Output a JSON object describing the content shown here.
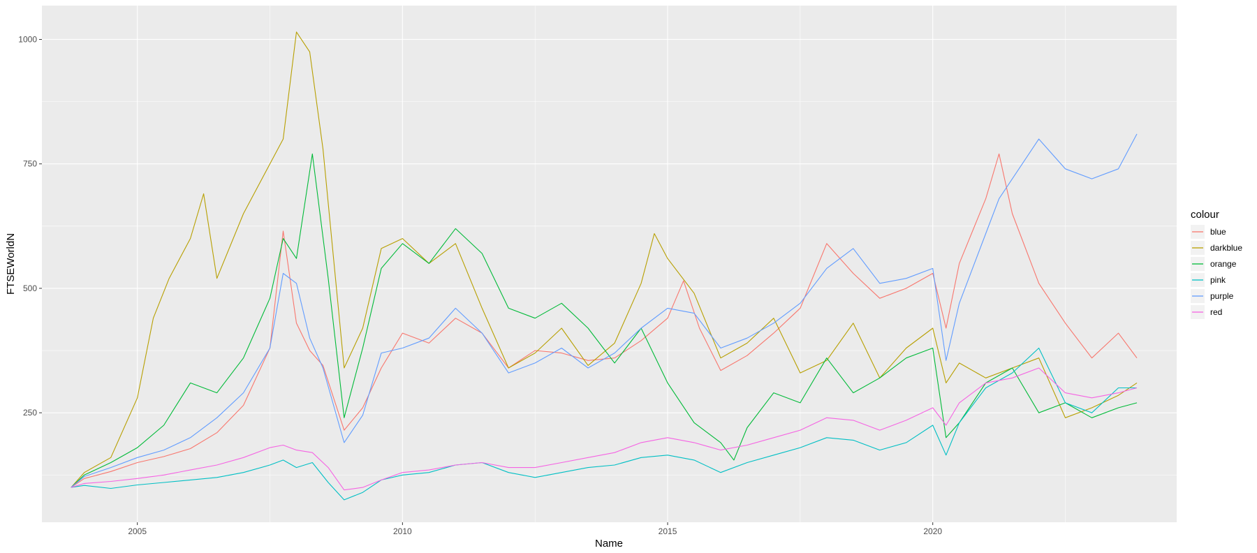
{
  "chart_data": {
    "type": "line",
    "title": "",
    "xlabel": "Name",
    "ylabel": "FTSEWorldN",
    "xlim": [
      2003.2,
      2024.6
    ],
    "ylim": [
      30,
      1068
    ],
    "x_ticks": [
      2005,
      2010,
      2015,
      2020
    ],
    "x_tick_labels": [
      "2005",
      "2010",
      "2015",
      "2020"
    ],
    "y_ticks": [
      250,
      500,
      750,
      1000
    ],
    "y_tick_labels": [
      "250",
      "500",
      "750",
      "1000"
    ],
    "grid": true,
    "background": "#ebebeb",
    "legend": {
      "title": "colour",
      "position": "right"
    },
    "series": [
      {
        "name": "blue",
        "color": "#f8766d",
        "x": [
          2003.75,
          2004.0,
          2004.5,
          2005.0,
          2005.5,
          2006.0,
          2006.5,
          2007.0,
          2007.5,
          2007.75,
          2008.0,
          2008.25,
          2008.5,
          2008.9,
          2009.25,
          2009.6,
          2010.0,
          2010.5,
          2011.0,
          2011.5,
          2012.0,
          2012.5,
          2013.0,
          2013.5,
          2014.0,
          2014.5,
          2015.0,
          2015.3,
          2015.6,
          2016.0,
          2016.5,
          2017.0,
          2017.5,
          2018.0,
          2018.5,
          2019.0,
          2019.5,
          2020.0,
          2020.25,
          2020.5,
          2021.0,
          2021.25,
          2021.5,
          2022.0,
          2022.5,
          2023.0,
          2023.5,
          2023.85
        ],
        "y": [
          100,
          118,
          132,
          150,
          162,
          178,
          210,
          265,
          380,
          615,
          430,
          375,
          345,
          215,
          260,
          340,
          410,
          390,
          440,
          410,
          340,
          375,
          370,
          355,
          360,
          395,
          440,
          515,
          420,
          335,
          365,
          410,
          460,
          590,
          530,
          480,
          500,
          530,
          420,
          550,
          680,
          770,
          650,
          510,
          430,
          360,
          410,
          360
        ]
      },
      {
        "name": "darkblue",
        "color": "#b79f00",
        "x": [
          2003.75,
          2004.0,
          2004.5,
          2005.0,
          2005.3,
          2005.6,
          2006.0,
          2006.25,
          2006.5,
          2007.0,
          2007.5,
          2007.75,
          2008.0,
          2008.25,
          2008.5,
          2008.9,
          2009.25,
          2009.6,
          2010.0,
          2010.5,
          2011.0,
          2011.5,
          2012.0,
          2012.5,
          2013.0,
          2013.5,
          2014.0,
          2014.5,
          2014.75,
          2015.0,
          2015.5,
          2016.0,
          2016.5,
          2017.0,
          2017.5,
          2018.0,
          2018.5,
          2019.0,
          2019.5,
          2020.0,
          2020.25,
          2020.5,
          2021.0,
          2021.5,
          2022.0,
          2022.5,
          2023.0,
          2023.5,
          2023.85
        ],
        "y": [
          100,
          130,
          160,
          280,
          440,
          520,
          600,
          690,
          520,
          650,
          750,
          800,
          1015,
          975,
          780,
          340,
          420,
          580,
          600,
          550,
          590,
          460,
          340,
          370,
          420,
          345,
          390,
          510,
          610,
          560,
          490,
          360,
          390,
          440,
          330,
          355,
          430,
          320,
          380,
          420,
          310,
          350,
          320,
          340,
          360,
          240,
          260,
          285,
          310
        ]
      },
      {
        "name": "orange",
        "color": "#00ba38",
        "x": [
          2003.75,
          2004.0,
          2004.5,
          2005.0,
          2005.5,
          2006.0,
          2006.5,
          2007.0,
          2007.5,
          2007.75,
          2008.0,
          2008.3,
          2008.6,
          2008.9,
          2009.25,
          2009.6,
          2010.0,
          2010.5,
          2011.0,
          2011.5,
          2012.0,
          2012.5,
          2013.0,
          2013.5,
          2014.0,
          2014.5,
          2015.0,
          2015.5,
          2016.0,
          2016.25,
          2016.5,
          2017.0,
          2017.5,
          2018.0,
          2018.5,
          2019.0,
          2019.5,
          2020.0,
          2020.25,
          2020.5,
          2021.0,
          2021.5,
          2022.0,
          2022.5,
          2023.0,
          2023.5,
          2023.85
        ],
        "y": [
          100,
          125,
          150,
          180,
          225,
          310,
          290,
          360,
          480,
          600,
          560,
          770,
          520,
          240,
          380,
          540,
          590,
          550,
          620,
          570,
          460,
          440,
          470,
          420,
          350,
          420,
          310,
          230,
          190,
          155,
          220,
          290,
          270,
          360,
          290,
          320,
          360,
          380,
          200,
          230,
          310,
          340,
          250,
          270,
          240,
          260,
          270
        ]
      },
      {
        "name": "pink",
        "color": "#00bfc4",
        "x": [
          2003.75,
          2004.0,
          2004.5,
          2005.0,
          2005.5,
          2006.0,
          2006.5,
          2007.0,
          2007.5,
          2007.75,
          2008.0,
          2008.3,
          2008.6,
          2008.9,
          2009.25,
          2009.6,
          2010.0,
          2010.5,
          2011.0,
          2011.5,
          2012.0,
          2012.5,
          2013.0,
          2013.5,
          2014.0,
          2014.5,
          2015.0,
          2015.5,
          2016.0,
          2016.5,
          2017.0,
          2017.5,
          2018.0,
          2018.5,
          2019.0,
          2019.5,
          2020.0,
          2020.25,
          2020.5,
          2021.0,
          2021.5,
          2022.0,
          2022.5,
          2023.0,
          2023.5,
          2023.85
        ],
        "y": [
          100,
          104,
          98,
          105,
          110,
          115,
          120,
          130,
          145,
          155,
          140,
          150,
          110,
          75,
          90,
          115,
          125,
          130,
          145,
          150,
          130,
          120,
          130,
          140,
          145,
          160,
          165,
          155,
          130,
          150,
          165,
          180,
          200,
          195,
          175,
          190,
          225,
          165,
          230,
          300,
          330,
          380,
          270,
          250,
          300,
          300
        ]
      },
      {
        "name": "purple",
        "color": "#619cff",
        "x": [
          2003.75,
          2004.0,
          2004.5,
          2005.0,
          2005.5,
          2006.0,
          2006.5,
          2007.0,
          2007.5,
          2007.75,
          2008.0,
          2008.25,
          2008.5,
          2008.9,
          2009.25,
          2009.6,
          2010.0,
          2010.5,
          2011.0,
          2011.5,
          2012.0,
          2012.5,
          2013.0,
          2013.5,
          2014.0,
          2014.5,
          2015.0,
          2015.5,
          2016.0,
          2016.5,
          2017.0,
          2017.5,
          2018.0,
          2018.5,
          2019.0,
          2019.5,
          2020.0,
          2020.25,
          2020.5,
          2021.0,
          2021.25,
          2021.5,
          2022.0,
          2022.5,
          2023.0,
          2023.5,
          2023.85
        ],
        "y": [
          100,
          122,
          140,
          160,
          175,
          200,
          240,
          290,
          380,
          530,
          510,
          400,
          340,
          190,
          245,
          370,
          380,
          400,
          460,
          410,
          330,
          350,
          380,
          340,
          370,
          420,
          460,
          450,
          380,
          400,
          430,
          470,
          540,
          580,
          510,
          520,
          540,
          355,
          470,
          610,
          680,
          720,
          800,
          740,
          720,
          740,
          810
        ]
      },
      {
        "name": "red",
        "color": "#f564e3",
        "x": [
          2003.75,
          2004.0,
          2004.5,
          2005.0,
          2005.5,
          2006.0,
          2006.5,
          2007.0,
          2007.5,
          2007.75,
          2008.0,
          2008.3,
          2008.6,
          2008.9,
          2009.25,
          2009.6,
          2010.0,
          2010.5,
          2011.0,
          2011.5,
          2012.0,
          2012.5,
          2013.0,
          2013.5,
          2014.0,
          2014.5,
          2015.0,
          2015.5,
          2016.0,
          2016.5,
          2017.0,
          2017.5,
          2018.0,
          2018.5,
          2019.0,
          2019.5,
          2020.0,
          2020.25,
          2020.5,
          2021.0,
          2021.5,
          2022.0,
          2022.5,
          2023.0,
          2023.5,
          2023.85
        ],
        "y": [
          100,
          108,
          112,
          118,
          125,
          135,
          145,
          160,
          180,
          185,
          175,
          170,
          140,
          95,
          100,
          115,
          130,
          135,
          145,
          150,
          140,
          140,
          150,
          160,
          170,
          190,
          200,
          190,
          175,
          185,
          200,
          215,
          240,
          235,
          215,
          235,
          260,
          225,
          270,
          310,
          320,
          340,
          290,
          280,
          290,
          300
        ]
      }
    ]
  }
}
